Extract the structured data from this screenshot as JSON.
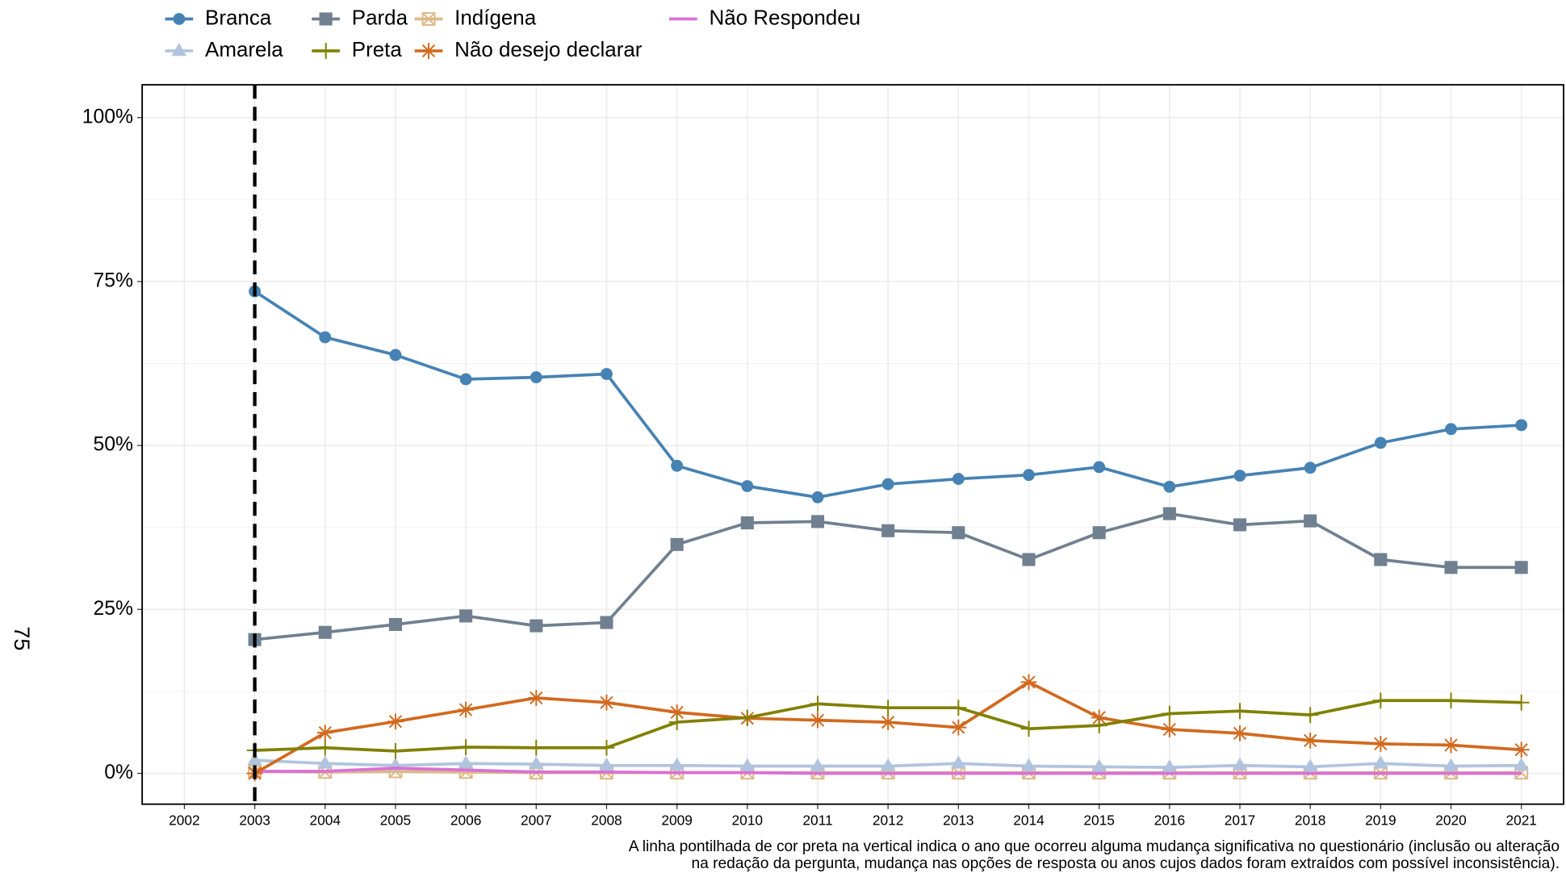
{
  "chart_data": {
    "type": "line",
    "x": [
      2003,
      2004,
      2005,
      2006,
      2007,
      2008,
      2009,
      2010,
      2011,
      2012,
      2013,
      2014,
      2015,
      2016,
      2017,
      2018,
      2019,
      2020,
      2021
    ],
    "series": [
      {
        "name": "Branca",
        "color": "#4682b4",
        "marker": "circle",
        "values": [
          73.5,
          66.5,
          63.8,
          60.1,
          60.4,
          60.9,
          46.9,
          43.8,
          42.1,
          44.1,
          44.9,
          45.5,
          46.7,
          43.7,
          45.4,
          46.6,
          50.4,
          52.5,
          53.1
        ]
      },
      {
        "name": "Amarela",
        "color": "#b0c4de",
        "marker": "triangle",
        "values": [
          2.0,
          1.5,
          1.2,
          1.5,
          1.4,
          1.2,
          1.2,
          1.1,
          1.1,
          1.1,
          1.5,
          1.1,
          1.0,
          0.9,
          1.2,
          1.0,
          1.5,
          1.1,
          1.2
        ]
      },
      {
        "name": "Parda",
        "color": "#708090",
        "marker": "square",
        "values": [
          20.4,
          21.5,
          22.7,
          24.0,
          22.5,
          23.0,
          34.9,
          38.2,
          38.4,
          37.0,
          36.7,
          32.6,
          36.7,
          39.6,
          37.9,
          38.5,
          32.6,
          31.4,
          31.4
        ]
      },
      {
        "name": "Preta",
        "color": "#808000",
        "marker": "plus",
        "values": [
          3.5,
          3.9,
          3.4,
          4.0,
          3.9,
          3.9,
          7.8,
          8.5,
          10.6,
          10.0,
          10.0,
          6.8,
          7.3,
          9.1,
          9.5,
          8.9,
          11.1,
          11.1,
          10.8
        ]
      },
      {
        "name": "Indígena",
        "color": "#deb887",
        "marker": "boxx",
        "values": [
          0.3,
          0.2,
          0.3,
          0.2,
          0.1,
          0.1,
          0.1,
          0.1,
          0.1,
          0.1,
          0.1,
          0.1,
          0.1,
          0.1,
          0.1,
          0.1,
          0.1,
          0.1,
          0.1
        ]
      },
      {
        "name": "Não desejo declarar",
        "color": "#d2691e",
        "marker": "asterisk",
        "values": [
          0,
          6.2,
          7.9,
          9.7,
          11.5,
          10.8,
          9.3,
          8.4,
          8.1,
          7.8,
          7.0,
          13.9,
          8.5,
          6.7,
          6.1,
          5.0,
          4.5,
          4.3,
          3.6
        ]
      },
      {
        "name": "Não Respondeu",
        "color": "#da70d6",
        "marker": "none",
        "values": [
          0.3,
          0.3,
          0.8,
          0.5,
          0.2,
          0.2,
          0.1,
          0.1,
          0,
          0,
          0,
          0,
          0,
          0,
          0,
          0,
          0,
          0,
          0
        ]
      }
    ],
    "xlim": [
      2001.4,
      2021.6
    ],
    "xticks": [
      2002,
      2003,
      2004,
      2005,
      2006,
      2007,
      2008,
      2009,
      2010,
      2011,
      2012,
      2013,
      2014,
      2015,
      2016,
      2017,
      2018,
      2019,
      2020,
      2021
    ],
    "ylim": [
      -4.7,
      105
    ],
    "yticks": [
      {
        "value": 0,
        "label": "0%"
      },
      {
        "value": 25,
        "label": "25%"
      },
      {
        "value": 50,
        "label": "50%"
      },
      {
        "value": 75,
        "label": "75%"
      },
      {
        "value": 100,
        "label": "100%"
      }
    ],
    "grid": true,
    "vline": 2003,
    "legend": "top",
    "page_number": "75",
    "caption": [
      "A linha pontilhada de cor preta na vertical indica o ano que ocorreu alguma mudança significativa no questionário (inclusão ou alteração",
      "na redação da pergunta, mudança nas opções de resposta ou anos cujos dados foram extraídos com possível inconsistência)."
    ]
  }
}
